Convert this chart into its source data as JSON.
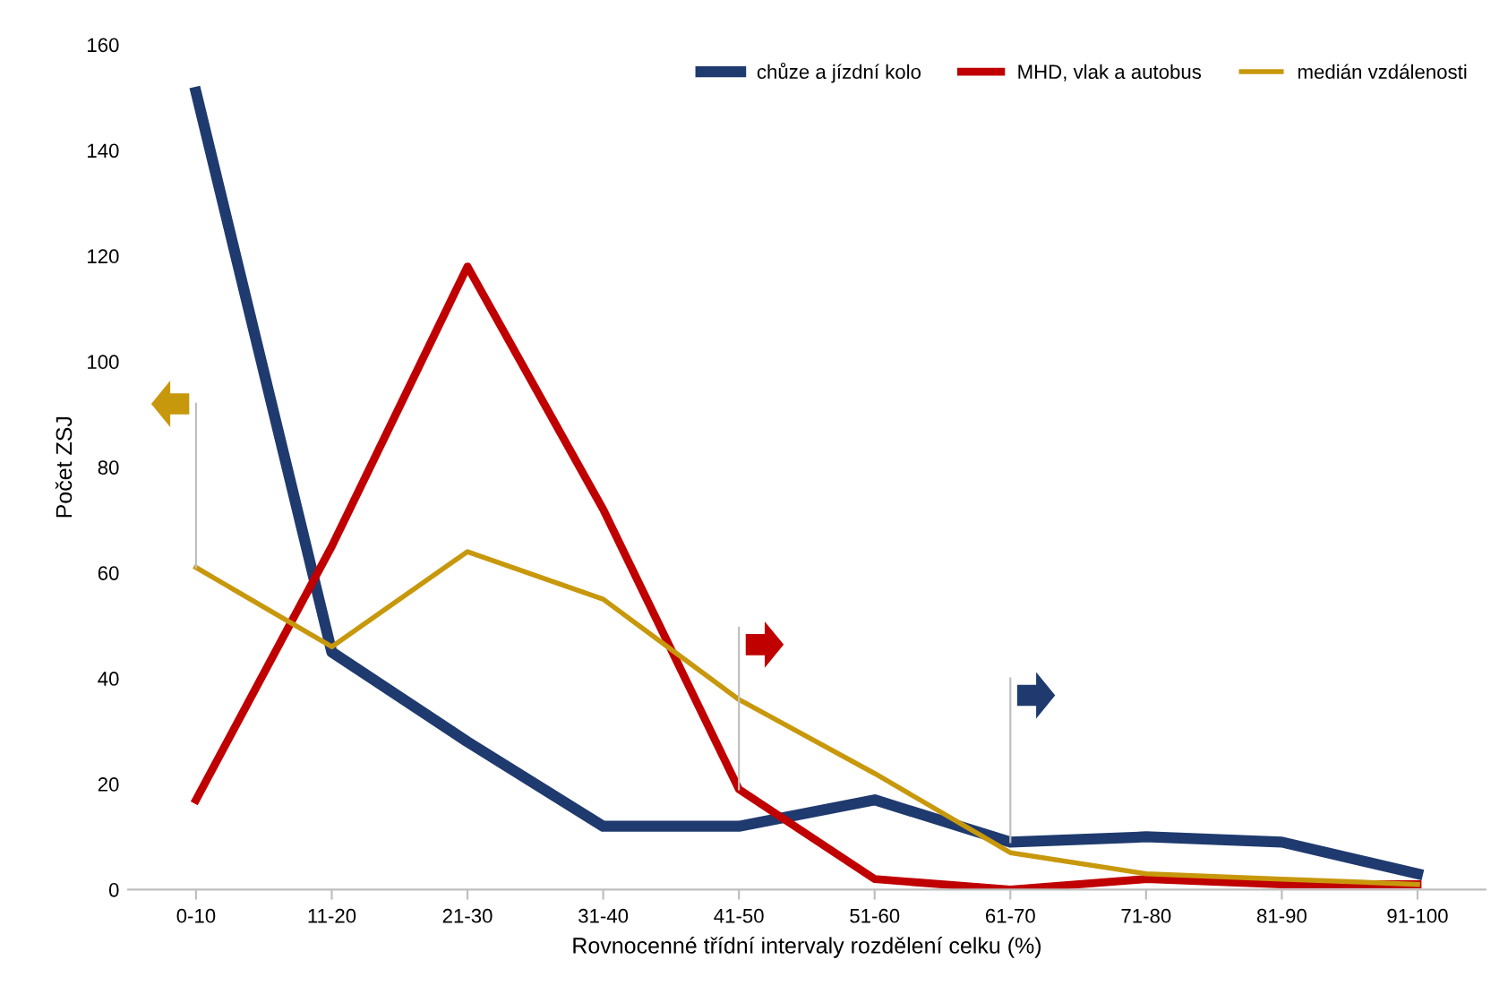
{
  "chart_data": {
    "type": "line",
    "xlabel": "Rovnocenné třídní intervaly rozdělení celku (%)",
    "ylabel": "Počet ZSJ",
    "categories": [
      "0-10",
      "11-20",
      "21-30",
      "31-40",
      "41-50",
      "51-60",
      "61-70",
      "71-80",
      "81-90",
      "91-100"
    ],
    "series": [
      {
        "name": "chůze a jízdní kolo",
        "color": "#1f3a6e",
        "values": [
          151,
          45,
          28,
          12,
          12,
          17,
          9,
          10,
          9,
          3
        ]
      },
      {
        "name": "MHD, vlak a autobus",
        "color": "#c00000",
        "values": [
          17,
          65,
          118,
          72,
          19,
          2,
          0,
          2,
          1,
          1
        ]
      },
      {
        "name": "medián vzdálenosti",
        "color": "#c8980c",
        "values": [
          61,
          46,
          64,
          55,
          36,
          22,
          7,
          3,
          2,
          1
        ]
      }
    ],
    "ylim": [
      0,
      160
    ],
    "yticks": [
      0,
      20,
      40,
      60,
      80,
      100,
      120,
      140,
      160
    ],
    "grid": false,
    "legend": "top right",
    "marker": "none",
    "line_style": "solid"
  }
}
